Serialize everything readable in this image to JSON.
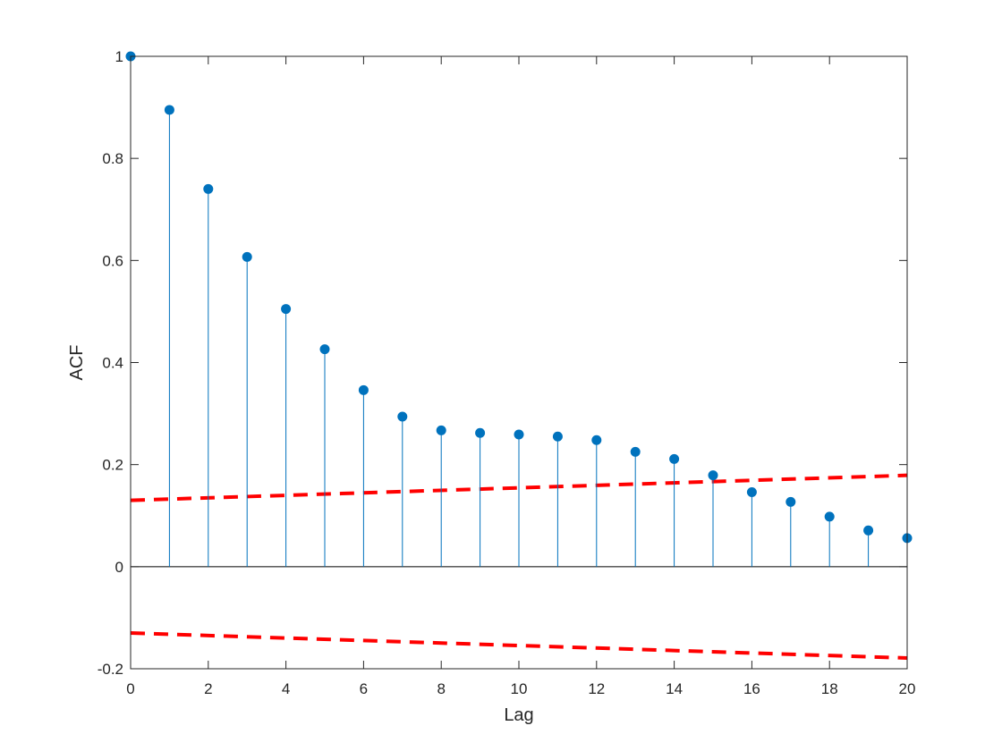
{
  "chart_data": {
    "type": "stem",
    "xlabel": "Lag",
    "ylabel": "ACF",
    "xlim": [
      0,
      20
    ],
    "ylim": [
      -0.2,
      1
    ],
    "xticks": [
      0,
      2,
      4,
      6,
      8,
      10,
      12,
      14,
      16,
      18,
      20
    ],
    "yticks": [
      -0.2,
      0,
      0.2,
      0.4,
      0.6,
      0.8,
      1
    ],
    "ytick_labels": [
      "-0.2",
      "0",
      "0.2",
      "0.4",
      "0.6",
      "0.8",
      "1"
    ],
    "grid": false,
    "box": true,
    "stem_color": "#0072BD",
    "bound_color": "#FF0000",
    "series": [
      {
        "x": [
          0,
          1,
          2,
          3,
          4,
          5,
          6,
          7,
          8,
          9,
          10,
          11,
          12,
          13,
          14,
          15,
          16,
          17,
          18,
          19,
          20
        ],
        "values": [
          1.0,
          0.895,
          0.74,
          0.607,
          0.505,
          0.426,
          0.346,
          0.294,
          0.267,
          0.262,
          0.259,
          0.255,
          0.248,
          0.225,
          0.211,
          0.179,
          0.146,
          0.127,
          0.098,
          0.071,
          0.056
        ]
      }
    ],
    "confidence_bounds": {
      "style": "dashed",
      "x": [
        0,
        20
      ],
      "upper": [
        0.13,
        0.179
      ],
      "lower": [
        -0.13,
        -0.179
      ]
    }
  }
}
